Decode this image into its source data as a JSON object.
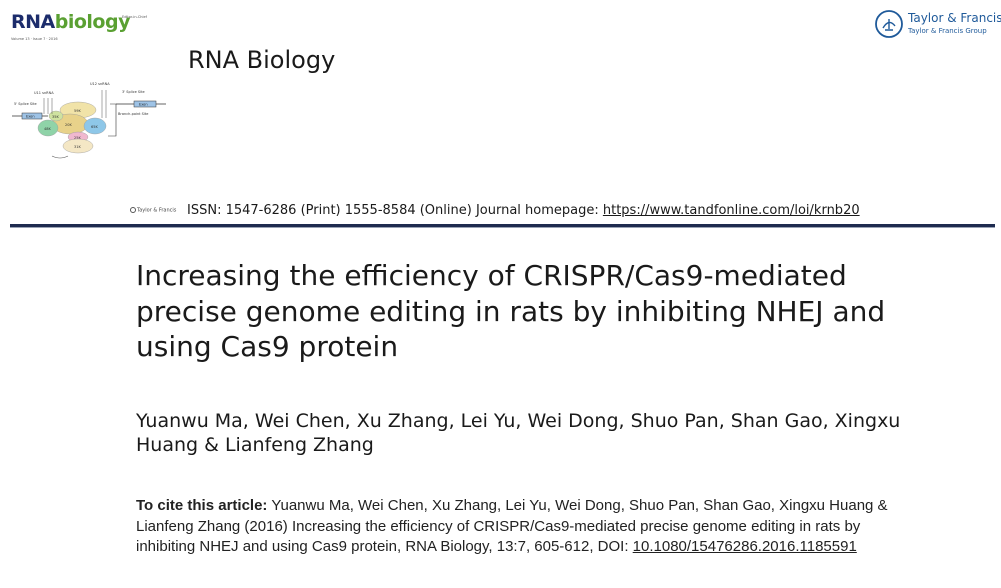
{
  "cover": {
    "logo_rna": "RNA",
    "logo_biology": "biology",
    "editor_tag": "Editor-in-Chief",
    "volume_tag": "Volume 13 · Issue 7 · 2016",
    "diagram_labels": {
      "u11": "U11 snRNA",
      "u12": "U12 snRNA",
      "five_prime_site": "5' Splice Site",
      "three_prime_site": "3' Splice Site",
      "branch_point": "Branch-point Site",
      "exon_left": "Exon",
      "exon_right": "Exon",
      "k59": "59K",
      "k20": "20K",
      "k65": "65K",
      "k35": "35K",
      "k31": "31K",
      "k48": "48K",
      "k25": "25K"
    }
  },
  "publisher": {
    "name": "Taylor & Francis",
    "group": "Taylor & Francis Group"
  },
  "header": {
    "journal_title": "RNA Biology",
    "mini_publisher": "Taylor & Francis",
    "issn_text": "ISSN: 1547-6286 (Print) 1555-8584 (Online) Journal homepage: ",
    "homepage_url": "https://www.tandfonline.com/loi/krnb20"
  },
  "article": {
    "title": "Increasing the efficiency of CRISPR/Cas9-mediated precise genome editing in rats by inhibiting NHEJ and using Cas9 protein",
    "authors": "Yuanwu Ma, Wei Chen, Xu Zhang, Lei Yu, Wei Dong, Shuo Pan, Shan Gao, Xingxu Huang & Lianfeng Zhang"
  },
  "citation": {
    "label": "To cite this article:",
    "text": " Yuanwu Ma, Wei Chen, Xu Zhang, Lei Yu, Wei Dong, Shuo Pan, Shan Gao, Xingxu Huang & Lianfeng Zhang (2016) Increasing the efficiency of CRISPR/Cas9-mediated precise genome editing in rats by inhibiting NHEJ and using Cas9 protein, RNA Biology, 13:7, 605-612, DOI: ",
    "doi": "10.1080/15476286.2016.1185591"
  },
  "colors": {
    "rule": "#1e2b4f",
    "logo_blue": "#1c2c6b",
    "logo_green": "#5aa032",
    "publisher_blue": "#1f5a9a"
  }
}
